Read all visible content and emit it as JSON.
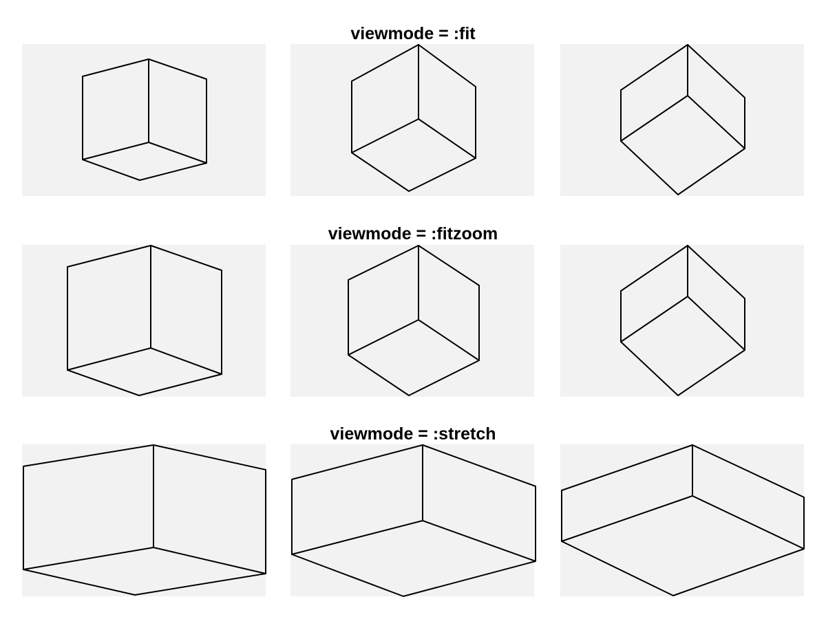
{
  "rows": [
    {
      "title": "viewmode = :fit"
    },
    {
      "title": "viewmode = :fitzoom"
    },
    {
      "title": "viewmode = :stretch"
    }
  ],
  "colors": {
    "panel_background": "#f2f2f2",
    "edge_stroke": "#000000",
    "page_background": "#ffffff"
  }
}
